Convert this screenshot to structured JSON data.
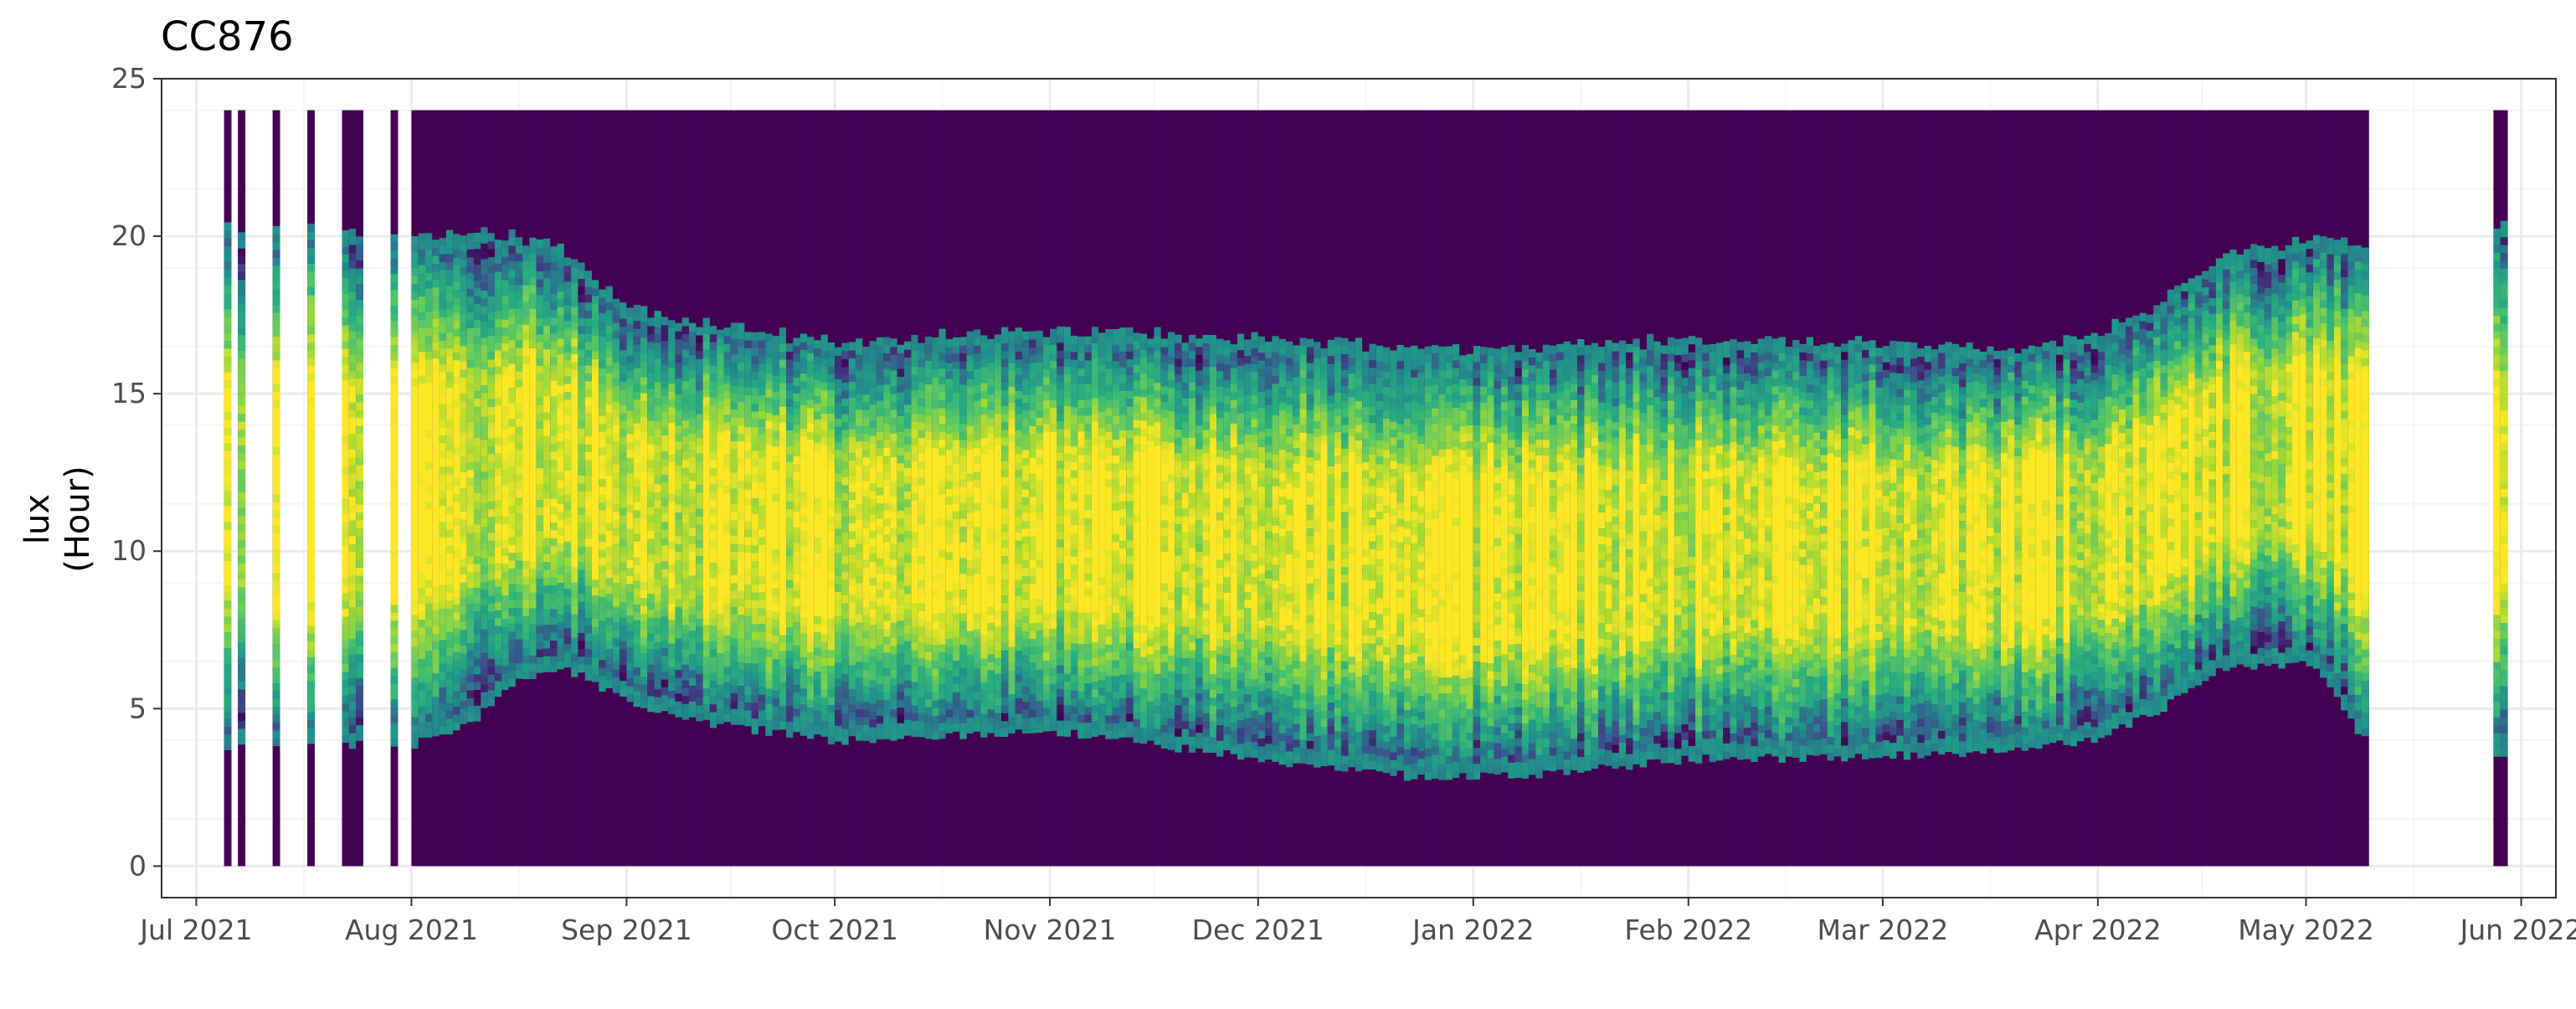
{
  "chart_data": {
    "type": "heatmap",
    "title": "CC876",
    "xlabel": "",
    "ylabel": "lux",
    "ylabel_sub": "(Hour)",
    "x_range": [
      "2021-06-28",
      "2022-06-04"
    ],
    "xlim": [
      "2021-06-26",
      "2022-06-06"
    ],
    "ylim": [
      -1,
      25
    ],
    "y_ticks": [
      0,
      5,
      10,
      15,
      20,
      25
    ],
    "x_ticks": [
      {
        "date": "2021-07-01",
        "label": "Jul 2021"
      },
      {
        "date": "2021-08-01",
        "label": "Aug 2021"
      },
      {
        "date": "2021-09-01",
        "label": "Sep 2021"
      },
      {
        "date": "2021-10-01",
        "label": "Oct 2021"
      },
      {
        "date": "2021-11-01",
        "label": "Nov 2021"
      },
      {
        "date": "2021-12-01",
        "label": "Dec 2021"
      },
      {
        "date": "2022-01-01",
        "label": "Jan 2022"
      },
      {
        "date": "2022-02-01",
        "label": "Feb 2022"
      },
      {
        "date": "2022-03-01",
        "label": "Mar 2022"
      },
      {
        "date": "2022-04-01",
        "label": "Apr 2022"
      },
      {
        "date": "2022-05-01",
        "label": "May 2022"
      },
      {
        "date": "2022-06-01",
        "label": "Jun 2022"
      }
    ],
    "data_segments": [
      {
        "start": "2021-07-05",
        "end": "2021-07-05"
      },
      {
        "start": "2021-07-07",
        "end": "2021-07-07"
      },
      {
        "start": "2021-07-12",
        "end": "2021-07-12"
      },
      {
        "start": "2021-07-17",
        "end": "2021-07-17"
      },
      {
        "start": "2021-07-22",
        "end": "2021-07-24"
      },
      {
        "start": "2021-07-29",
        "end": "2021-07-29"
      },
      {
        "start": "2021-08-01",
        "end": "2022-05-09"
      },
      {
        "start": "2022-05-28",
        "end": "2022-05-29"
      }
    ],
    "sunrise_hour": [
      {
        "date": "2021-07-05",
        "hour": 3.8
      },
      {
        "date": "2021-08-01",
        "hour": 3.9
      },
      {
        "date": "2021-08-10",
        "hour": 4.7
      },
      {
        "date": "2021-08-16",
        "hour": 5.9
      },
      {
        "date": "2021-08-22",
        "hour": 6.4
      },
      {
        "date": "2021-09-01",
        "hour": 5.2
      },
      {
        "date": "2021-09-10",
        "hour": 4.6
      },
      {
        "date": "2021-10-01",
        "hour": 4.0
      },
      {
        "date": "2021-11-01",
        "hour": 4.3
      },
      {
        "date": "2021-12-01",
        "hour": 3.4
      },
      {
        "date": "2021-12-25",
        "hour": 2.8
      },
      {
        "date": "2022-01-15",
        "hour": 3.0
      },
      {
        "date": "2022-02-01",
        "hour": 3.4
      },
      {
        "date": "2022-03-01",
        "hour": 3.5
      },
      {
        "date": "2022-03-20",
        "hour": 3.7
      },
      {
        "date": "2022-04-01",
        "hour": 4.1
      },
      {
        "date": "2022-04-10",
        "hour": 5.0
      },
      {
        "date": "2022-04-18",
        "hour": 6.3
      },
      {
        "date": "2022-05-01",
        "hour": 6.5
      },
      {
        "date": "2022-05-09",
        "hour": 4.0
      },
      {
        "date": "2022-05-29",
        "hour": 3.6
      }
    ],
    "sunset_hour": [
      {
        "date": "2021-07-05",
        "hour": 20.2
      },
      {
        "date": "2021-08-01",
        "hour": 20.0
      },
      {
        "date": "2021-08-15",
        "hour": 19.9
      },
      {
        "date": "2021-08-22",
        "hour": 19.5
      },
      {
        "date": "2021-09-01",
        "hour": 17.6
      },
      {
        "date": "2021-09-15",
        "hour": 17.0
      },
      {
        "date": "2021-10-01",
        "hour": 16.5
      },
      {
        "date": "2021-11-01",
        "hour": 16.9
      },
      {
        "date": "2021-12-01",
        "hour": 16.6
      },
      {
        "date": "2022-01-01",
        "hour": 16.3
      },
      {
        "date": "2022-02-01",
        "hour": 16.6
      },
      {
        "date": "2022-03-01",
        "hour": 16.5
      },
      {
        "date": "2022-03-20",
        "hour": 16.3
      },
      {
        "date": "2022-04-01",
        "hour": 16.8
      },
      {
        "date": "2022-04-10",
        "hour": 17.8
      },
      {
        "date": "2022-04-18",
        "hour": 19.2
      },
      {
        "date": "2022-05-01",
        "hour": 19.8
      },
      {
        "date": "2022-05-09",
        "hour": 19.7
      },
      {
        "date": "2022-05-29",
        "hour": 20.2
      }
    ],
    "night_value_hour_range": [
      0,
      24
    ],
    "colors": {
      "night": "#440154",
      "viridis": [
        "#440154",
        "#3b528b",
        "#21908c",
        "#2ab07f",
        "#5ec962",
        "#a8db34",
        "#fde725"
      ],
      "grid_major": "#ebebeb",
      "grid_minor": "#f5f5f5",
      "panel_border": "#333333"
    },
    "grid": true,
    "legend": "none"
  }
}
